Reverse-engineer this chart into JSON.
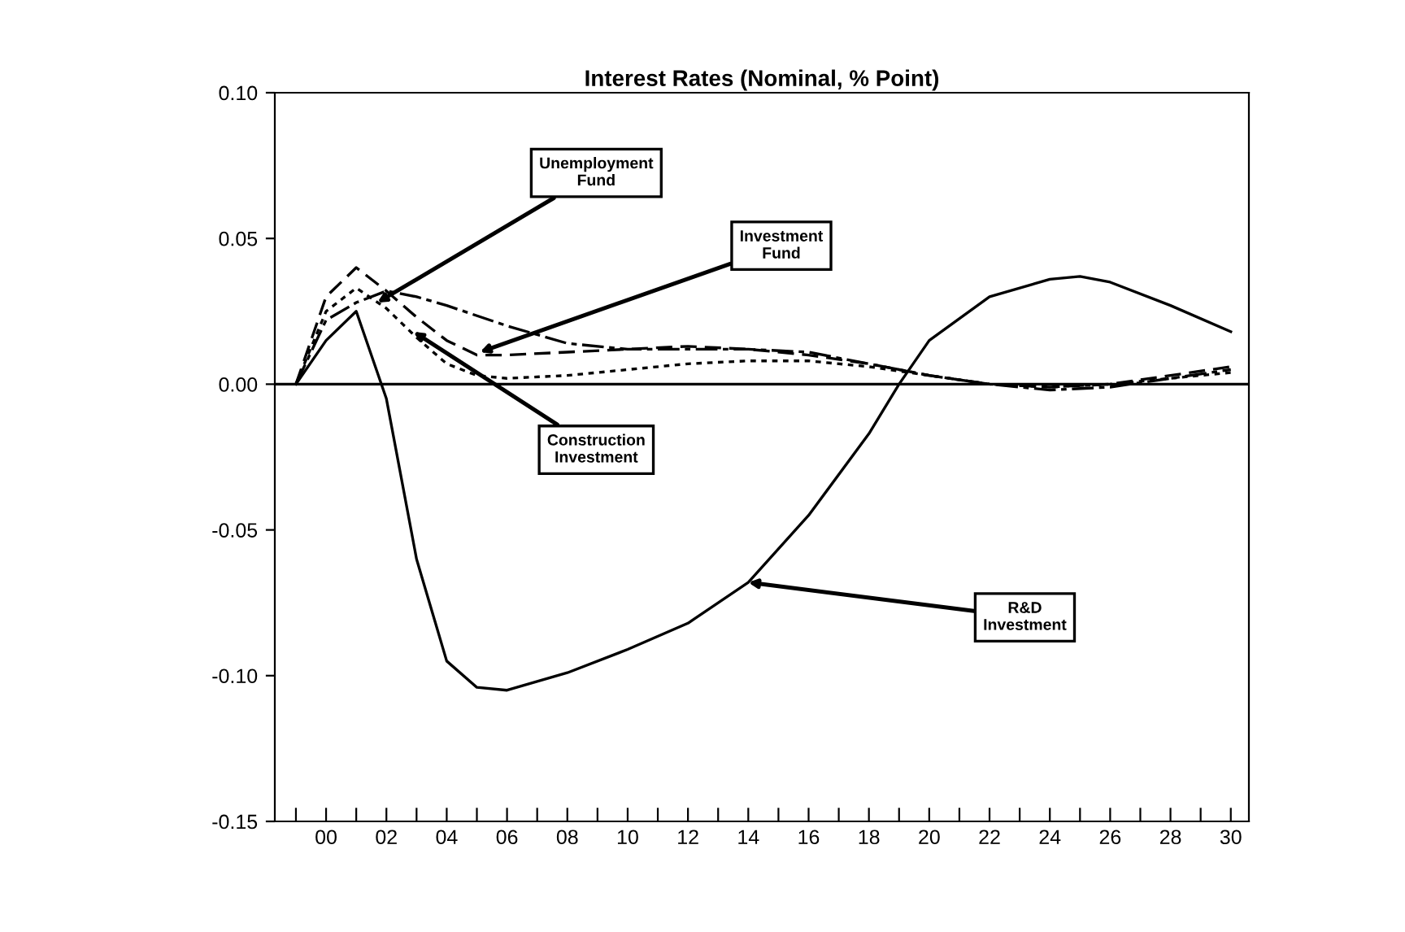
{
  "chart_data": {
    "type": "line",
    "title": "Interest Rates (Nominal, % Point)",
    "xlim": [
      -1.7,
      30.6
    ],
    "ylim": [
      -0.15,
      0.1
    ],
    "xticks": [
      {
        "value": -1,
        "label": null
      },
      {
        "value": 0,
        "label": "00"
      },
      {
        "value": 1,
        "label": null
      },
      {
        "value": 2,
        "label": "02"
      },
      {
        "value": 3,
        "label": null
      },
      {
        "value": 4,
        "label": "04"
      },
      {
        "value": 5,
        "label": null
      },
      {
        "value": 6,
        "label": "06"
      },
      {
        "value": 7,
        "label": null
      },
      {
        "value": 8,
        "label": "08"
      },
      {
        "value": 9,
        "label": null
      },
      {
        "value": 10,
        "label": "10"
      },
      {
        "value": 11,
        "label": null
      },
      {
        "value": 12,
        "label": "12"
      },
      {
        "value": 13,
        "label": null
      },
      {
        "value": 14,
        "label": "14"
      },
      {
        "value": 15,
        "label": null
      },
      {
        "value": 16,
        "label": "16"
      },
      {
        "value": 17,
        "label": null
      },
      {
        "value": 18,
        "label": "18"
      },
      {
        "value": 19,
        "label": null
      },
      {
        "value": 20,
        "label": "20"
      },
      {
        "value": 21,
        "label": null
      },
      {
        "value": 22,
        "label": "22"
      },
      {
        "value": 23,
        "label": null
      },
      {
        "value": 24,
        "label": "24"
      },
      {
        "value": 25,
        "label": null
      },
      {
        "value": 26,
        "label": "26"
      },
      {
        "value": 27,
        "label": null
      },
      {
        "value": 28,
        "label": "28"
      },
      {
        "value": 29,
        "label": null
      },
      {
        "value": 30,
        "label": "30"
      }
    ],
    "yticks": [
      {
        "value": 0.1,
        "label": "0.10"
      },
      {
        "value": 0.05,
        "label": "0.05"
      },
      {
        "value": 0.0,
        "label": "0.00"
      },
      {
        "value": -0.05,
        "label": "-0.05"
      },
      {
        "value": -0.1,
        "label": "-0.10"
      },
      {
        "value": -0.15,
        "label": "-0.15"
      }
    ],
    "grid": false,
    "legend": false,
    "marker": "none",
    "ref_lines": [
      {
        "axis": "y",
        "value": 0,
        "color": "#000000",
        "line_style": "solid"
      }
    ],
    "series": [
      {
        "color": "#000000",
        "line_style": "solid",
        "x": [
          -1,
          0,
          1,
          2,
          3,
          4,
          5,
          6,
          8,
          10,
          12,
          14,
          16,
          18,
          19,
          20,
          22,
          24,
          25,
          26,
          28,
          30
        ],
        "values": [
          0.0,
          0.015,
          0.025,
          -0.005,
          -0.06,
          -0.095,
          -0.104,
          -0.105,
          -0.099,
          -0.091,
          -0.082,
          -0.068,
          -0.045,
          -0.017,
          0.0,
          0.015,
          0.03,
          0.036,
          0.037,
          0.035,
          0.027,
          0.018
        ]
      },
      {
        "color": "#000000",
        "line_style": "dashed",
        "x": [
          -1,
          0,
          1,
          2,
          3,
          4,
          5,
          6,
          8,
          10,
          12,
          14,
          16,
          18,
          20,
          22,
          24,
          26,
          28,
          30
        ],
        "values": [
          0.0,
          0.03,
          0.04,
          0.032,
          0.023,
          0.015,
          0.01,
          0.01,
          0.011,
          0.012,
          0.013,
          0.012,
          0.01,
          0.007,
          0.003,
          0.0,
          -0.001,
          0.0,
          0.003,
          0.006
        ]
      },
      {
        "color": "#000000",
        "line_style": "dashdot",
        "x": [
          -1,
          0,
          1,
          2,
          3,
          4,
          6,
          8,
          10,
          12,
          14,
          16,
          18,
          20,
          22,
          24,
          26,
          28,
          30
        ],
        "values": [
          0.0,
          0.022,
          0.028,
          0.032,
          0.03,
          0.027,
          0.02,
          0.014,
          0.012,
          0.012,
          0.012,
          0.011,
          0.007,
          0.003,
          0.0,
          -0.002,
          -0.001,
          0.002,
          0.005
        ]
      },
      {
        "color": "#000000",
        "line_style": "dotted",
        "x": [
          -1,
          0,
          1,
          2,
          3,
          4,
          5,
          6,
          8,
          10,
          12,
          14,
          16,
          18,
          20,
          22,
          24,
          26,
          28,
          30
        ],
        "values": [
          0.0,
          0.025,
          0.033,
          0.026,
          0.016,
          0.007,
          0.003,
          0.002,
          0.003,
          0.005,
          0.007,
          0.008,
          0.008,
          0.006,
          0.003,
          0.0,
          -0.001,
          0.0,
          0.002,
          0.004
        ]
      }
    ],
    "annotations": [
      {
        "text": "Unemployment\nFund",
        "x": 1.7,
        "y": 0.028
      },
      {
        "text": "Investment\nFund",
        "x": 5.1,
        "y": 0.011
      },
      {
        "text": "Construction\nInvestment",
        "x": 2.9,
        "y": 0.018
      },
      {
        "text": "R&D\nInvestment",
        "x": 14.0,
        "y": -0.068
      }
    ]
  }
}
